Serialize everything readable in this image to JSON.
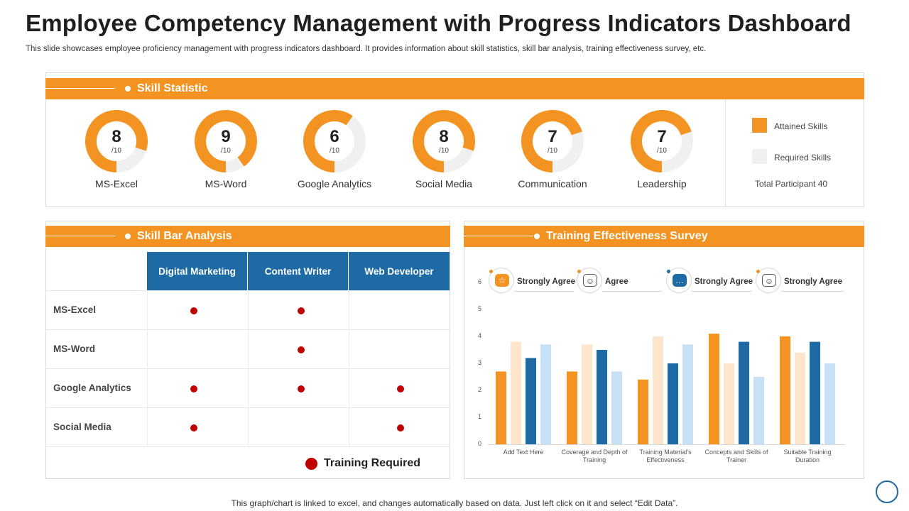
{
  "title": "Employee Competency Management with Progress Indicators Dashboard",
  "subtitle": "This slide showcases employee proficiency management with progress indicators dashboard. It provides information about skill statistics, skill bar analysis, training effectiveness survey, etc.",
  "skill_statistic": {
    "heading": "Skill Statistic",
    "gauges": [
      {
        "value": "8",
        "max": "/10",
        "label": "MS-Excel",
        "fraction": 0.8
      },
      {
        "value": "9",
        "max": "/10",
        "label": "MS-Word",
        "fraction": 0.9
      },
      {
        "value": "6",
        "max": "/10",
        "label": "Google Analytics",
        "fraction": 0.6
      },
      {
        "value": "8",
        "max": "/10",
        "label": "Social Media",
        "fraction": 0.8
      },
      {
        "value": "7",
        "max": "/10",
        "label": "Communication",
        "fraction": 0.7
      },
      {
        "value": "7",
        "max": "/10",
        "label": "Leadership",
        "fraction": 0.7
      }
    ],
    "legend": {
      "attained": "Attained Skills",
      "required": "Required Skills",
      "total": "Total Participant 40"
    },
    "colors": {
      "attained": "#f39322",
      "required": "#f0f0f0"
    }
  },
  "skill_bar": {
    "heading": "Skill Bar Analysis",
    "columns": [
      "Digital Marketing",
      "Content Writer",
      "Web Developer"
    ],
    "rows": [
      {
        "label": "MS-Excel",
        "marks": [
          true,
          true,
          false
        ]
      },
      {
        "label": "MS-Word",
        "marks": [
          false,
          true,
          false
        ]
      },
      {
        "label": "Google Analytics",
        "marks": [
          true,
          true,
          true
        ]
      },
      {
        "label": "Social Media",
        "marks": [
          true,
          false,
          true
        ]
      }
    ],
    "legend": "Training Required",
    "colors": {
      "header": "#1e6aa4",
      "mark": "#c00000"
    }
  },
  "survey": {
    "heading": "Training Effectiveness Survey",
    "icons": [
      {
        "icon": "chat-bubble-icon",
        "label": "Strongly Agree"
      },
      {
        "icon": "person-heart-icon",
        "label": "Agree"
      },
      {
        "icon": "speech-bubble-icon",
        "label": "Strongly Agree"
      },
      {
        "icon": "person-idea-icon",
        "label": "Strongly Agree"
      }
    ]
  },
  "chart_data": {
    "type": "bar",
    "categories": [
      "Add Text Here",
      "Coverage and Depth of Training",
      "Training Material's Effectiveness",
      "Concepts and Skills of Trainer",
      "Suitable Training Duration"
    ],
    "category_lines": [
      [
        "Add Text Here"
      ],
      [
        "Coverage and Depth of",
        "Training"
      ],
      [
        "Training Material's",
        "Effectiveness"
      ],
      [
        "Concepts and Skills of",
        "Trainer"
      ],
      [
        "Suitable Training",
        "Duration"
      ]
    ],
    "series": [
      {
        "values": [
          2.7,
          2.7,
          2.4,
          4.1,
          4.0
        ],
        "color": "#f39322"
      },
      {
        "values": [
          3.8,
          3.7,
          4.0,
          3.0,
          3.4
        ],
        "color": "#fde6cc"
      },
      {
        "values": [
          3.2,
          3.5,
          3.0,
          3.8,
          3.8
        ],
        "color": "#1e6aa4"
      },
      {
        "values": [
          3.7,
          2.7,
          3.7,
          2.5,
          3.0
        ],
        "color": "#c6e0f5"
      }
    ],
    "yticks": [
      "0",
      "1",
      "2",
      "3",
      "4",
      "5",
      "6"
    ],
    "ylim": [
      0,
      6
    ]
  },
  "footnote": "This graph/chart is linked to excel, and changes automatically based on data. Just left click on it and select “Edit Data”."
}
